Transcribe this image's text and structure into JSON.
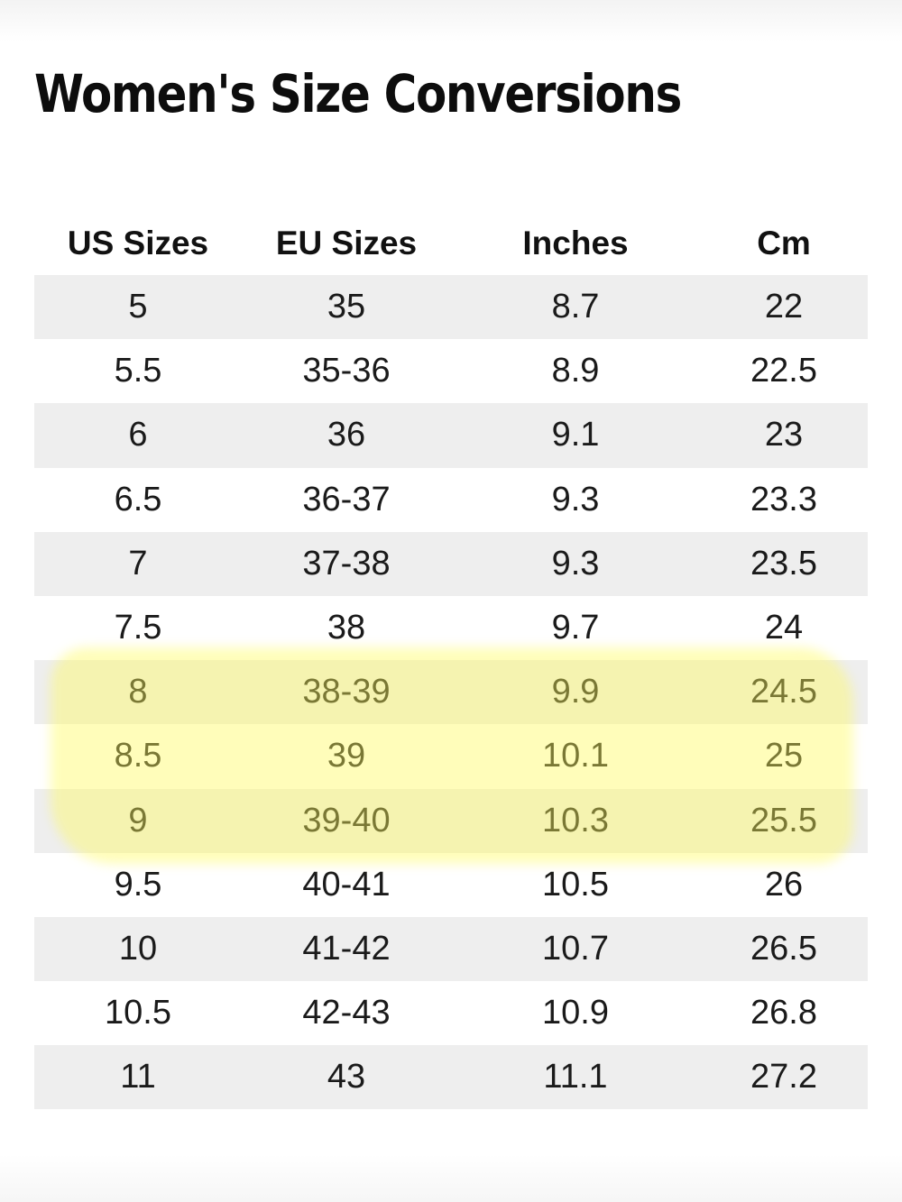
{
  "title": "Women's Size Conversions",
  "table": {
    "headers": [
      "US Sizes",
      "EU Sizes",
      "Inches",
      "Cm"
    ],
    "rows": [
      [
        "5",
        "35",
        "8.7",
        "22"
      ],
      [
        "5.5",
        "35-36",
        "8.9",
        "22.5"
      ],
      [
        "6",
        "36",
        "9.1",
        "23"
      ],
      [
        "6.5",
        "36-37",
        "9.3",
        "23.3"
      ],
      [
        "7",
        "37-38",
        "9.3",
        "23.5"
      ],
      [
        "7.5",
        "38",
        "9.7",
        "24"
      ],
      [
        "8",
        "38-39",
        "9.9",
        "24.5"
      ],
      [
        "8.5",
        "39",
        "10.1",
        "25"
      ],
      [
        "9",
        "39-40",
        "10.3",
        "25.5"
      ],
      [
        "9.5",
        "40-41",
        "10.5",
        "26"
      ],
      [
        "10",
        "41-42",
        "10.7",
        "26.5"
      ],
      [
        "10.5",
        "42-43",
        "10.9",
        "26.8"
      ],
      [
        "11",
        "43",
        "11.1",
        "27.2"
      ]
    ]
  },
  "colors": {
    "row_shade": "#eeeeee",
    "highlighter": "#fff55a"
  }
}
